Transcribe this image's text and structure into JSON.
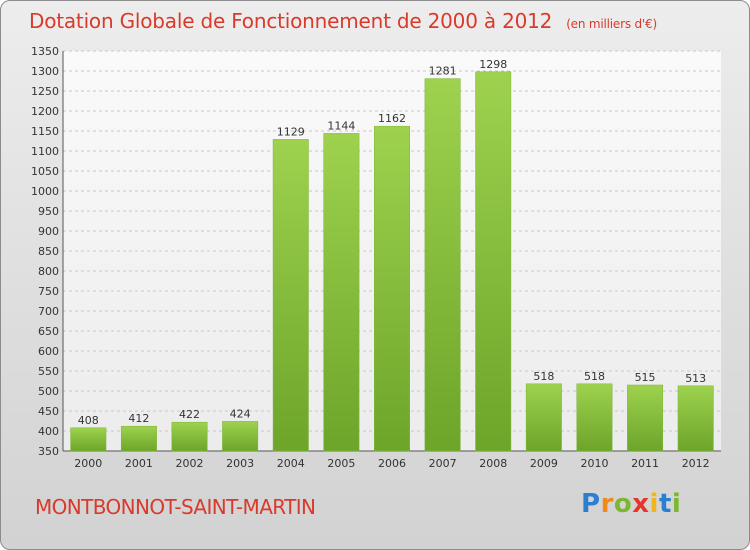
{
  "chart_data": {
    "type": "bar",
    "title": "Dotation Globale de Fonctionnement de 2000 à 2012",
    "subtitle": "(en milliers d'€)",
    "categories": [
      "2000",
      "2001",
      "2002",
      "2003",
      "2004",
      "2005",
      "2006",
      "2007",
      "2008",
      "2009",
      "2010",
      "2011",
      "2012"
    ],
    "values": [
      408,
      412,
      422,
      424,
      1129,
      1144,
      1162,
      1281,
      1298,
      518,
      518,
      515,
      513
    ],
    "ylim": [
      350,
      1350
    ],
    "yticks": [
      350,
      400,
      450,
      500,
      550,
      600,
      650,
      700,
      750,
      800,
      850,
      900,
      950,
      1000,
      1050,
      1100,
      1150,
      1200,
      1250,
      1300,
      1350
    ],
    "grid": true,
    "bar_color": "#8cc63f"
  },
  "footer": {
    "municipality": "MONTBONNOT-SAINT-MARTIN"
  },
  "logo": {
    "text": "Proxiti",
    "letter_colors": [
      "#2b7fd1",
      "#f08a1c",
      "#7cb82f",
      "#e8352c",
      "#f2b51a",
      "#2b7fd1",
      "#7cb82f"
    ]
  },
  "colors": {
    "title": "#d93a2b",
    "axis_text": "#333333",
    "grid": "#c8c8c8"
  }
}
